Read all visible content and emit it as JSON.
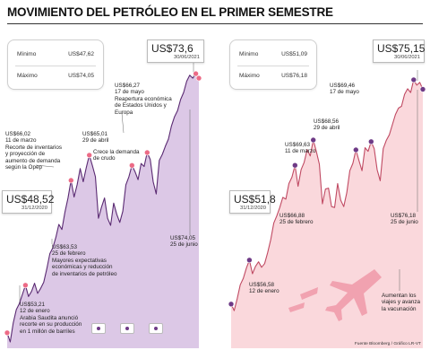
{
  "title": "MOVIMIENTO DEL PETRÓLEO EN EL PRIMER SEMESTRE",
  "source": "Fuente Bloomberg / Gráfico LR-VT",
  "colors": {
    "wti_fill": "#dcc8e6",
    "wti_line": "#5a2a72",
    "brent_fill": "#fad8dc",
    "brent_line": "#c04a63",
    "marker_pink": "#ec6b86",
    "marker_purple": "#6e3a86",
    "plane": "#f1a2b0"
  },
  "left_panel": {
    "stats": {
      "min_label": "Mínimo",
      "min_value": "US$47,62",
      "max_label": "Máximo",
      "max_value": "US$74,05"
    },
    "start_callout": {
      "value": "US$48,52",
      "date": "31/12/2020"
    },
    "end_callout": {
      "value": "US$73,6",
      "date": "30/06/2021"
    },
    "annotations": {
      "jan12_price": "US$53,21",
      "jan12_date": "12 de enero",
      "jan12_text": [
        "Arabia Saudita anunció",
        "recorte en su producción",
        "en 1 millón de barriles"
      ],
      "feb25_price": "US$63,53",
      "feb25_date": "25 de febrero",
      "feb25_text": [
        "Mayores expectativas",
        "económicas y reducción",
        "de inventarios de petróleo"
      ],
      "mar11_price": "US$66,02",
      "mar11_date": "11 de marzo",
      "mar11_text": [
        "Recorte de inventarios",
        "y proyección de",
        "aumento de demanda",
        "según la Opep"
      ],
      "apr29_price": "US$65,01",
      "apr29_date": "29 de abril",
      "apr29_text": [
        "Crece la demanda",
        "de crudo"
      ],
      "may17_price": "US$66,27",
      "may17_date": "17 de mayo",
      "may17_text": [
        "Reapertura económica",
        "de Estados Unidos y",
        "Europa"
      ],
      "jun25_price": "US$74,05",
      "jun25_date": "25 de junio"
    }
  },
  "right_panel": {
    "stats": {
      "min_label": "Mínimo",
      "min_value": "US$51,09",
      "max_label": "Máximo",
      "max_value": "US$76,18"
    },
    "start_callout": {
      "value": "US$51,8",
      "date": "31/12/2020"
    },
    "end_callout": {
      "value": "US$75,15",
      "date": "30/06/2021"
    },
    "annotations": {
      "jan12_price": "US$56,58",
      "jan12_date": "12 de enero",
      "feb25_price": "US$66,88",
      "feb25_date": "25 de febrero",
      "mar11_price": "US$69,63",
      "mar11_date": "11 de marzo",
      "apr29_price": "US$68,56",
      "apr29_date": "29 de abril",
      "may17_price": "US$69,46",
      "may17_date": "17 de mayo",
      "jun25_price": "US$76,18",
      "jun25_date": "25 de junio",
      "vaccine_text": [
        "Aumentan los",
        "viajes y avanza",
        "la vacunación"
      ]
    }
  },
  "chart_data": [
    {
      "type": "area",
      "panel": "left",
      "ylim": [
        47,
        76
      ],
      "series": [
        {
          "values": [
            48.52,
            47.62,
            49.5,
            50.8,
            51.4,
            52.3,
            53.21,
            52.1,
            52.6,
            53.4,
            52.4,
            52.9,
            53.5,
            54.8,
            56.3,
            56.9,
            57.9,
            59.2,
            58.7,
            60.4,
            61.8,
            63.53,
            61.9,
            63.1,
            64.7,
            63.4,
            64.8,
            66.02,
            65.0,
            63.9,
            59.8,
            60.9,
            61.8,
            59.8,
            59.1,
            61.3,
            60.2,
            59.4,
            60.5,
            63.1,
            63.9,
            65.01,
            64.4,
            63.6,
            65.2,
            64.9,
            66.27,
            65.6,
            63.4,
            62.2,
            65.5,
            66.1,
            66.9,
            67.6,
            68.9,
            69.8,
            70.4,
            71.5,
            72.2,
            73.3,
            73.9,
            73.6,
            74.05,
            73.6
          ]
        }
      ],
      "markers": [
        {
          "label": "US$48,52",
          "value": 48.52
        },
        {
          "label": "US$53,21",
          "value": 53.21
        },
        {
          "label": "US$63,53",
          "value": 63.53
        },
        {
          "label": "US$66,02",
          "value": 66.02
        },
        {
          "label": "US$65,01",
          "value": 65.01
        },
        {
          "label": "US$66,27",
          "value": 66.27
        },
        {
          "label": "US$74,05",
          "value": 74.05
        },
        {
          "label": "US$73,6",
          "value": 73.6
        }
      ]
    },
    {
      "type": "area",
      "panel": "right",
      "ylim": [
        47,
        79
      ],
      "series": [
        {
          "values": [
            51.8,
            51.09,
            52.4,
            53.9,
            54.6,
            55.7,
            56.58,
            55.1,
            55.9,
            56.4,
            55.8,
            56.2,
            57.4,
            58.8,
            60.6,
            61.4,
            62.3,
            63.4,
            63.2,
            64.9,
            65.6,
            66.88,
            64.6,
            66.4,
            67.2,
            68.6,
            67.9,
            69.63,
            68.4,
            67.0,
            62.7,
            64.3,
            64.4,
            62.4,
            62.3,
            64.9,
            63.1,
            62.4,
            63.9,
            66.3,
            67.1,
            68.56,
            67.4,
            66.3,
            68.8,
            68.4,
            69.46,
            68.7,
            66.4,
            65.2,
            68.7,
            69.6,
            70.2,
            71.3,
            72.4,
            73.1,
            73.3,
            74.6,
            75.2,
            74.8,
            76.18,
            75.6,
            75.9,
            75.15
          ]
        }
      ],
      "markers": [
        {
          "label": "US$51,8",
          "value": 51.8
        },
        {
          "label": "US$56,58",
          "value": 56.58
        },
        {
          "label": "US$66,88",
          "value": 66.88
        },
        {
          "label": "US$69,63",
          "value": 69.63
        },
        {
          "label": "US$68,56",
          "value": 68.56
        },
        {
          "label": "US$69,46",
          "value": 69.46
        },
        {
          "label": "US$76,18",
          "value": 76.18
        },
        {
          "label": "US$75,15",
          "value": 75.15
        }
      ]
    }
  ]
}
